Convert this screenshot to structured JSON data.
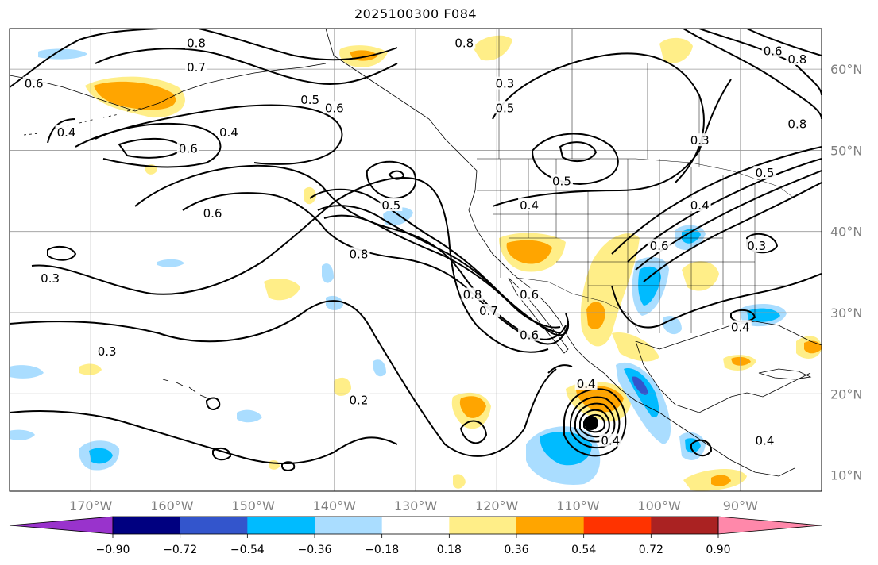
{
  "title": "2025100300 F084",
  "map": {
    "lon_range": [
      -180,
      -80
    ],
    "lat_range": [
      8,
      65
    ],
    "lon_ticks": [
      {
        "lon": -170,
        "label": "170°W"
      },
      {
        "lon": -160,
        "label": "160°W"
      },
      {
        "lon": -150,
        "label": "150°W"
      },
      {
        "lon": -140,
        "label": "140°W"
      },
      {
        "lon": -130,
        "label": "130°W"
      },
      {
        "lon": -120,
        "label": "120°W"
      },
      {
        "lon": -110,
        "label": "110°W"
      },
      {
        "lon": -100,
        "label": "100°W"
      },
      {
        "lon": -90,
        "label": "90°W"
      }
    ],
    "lat_ticks": [
      {
        "lat": 60,
        "label": "60°N"
      },
      {
        "lat": 50,
        "label": "50°N"
      },
      {
        "lat": 40,
        "label": "40°N"
      },
      {
        "lat": 30,
        "label": "30°N"
      },
      {
        "lat": 20,
        "label": "20°N"
      },
      {
        "lat": 10,
        "label": "10°N"
      }
    ],
    "gridlines": true,
    "contour_labels": [
      {
        "lon": -157,
        "lat": 63,
        "text": "0.8"
      },
      {
        "lon": -157,
        "lat": 60,
        "text": "0.7"
      },
      {
        "lon": -177,
        "lat": 58,
        "text": "0.6"
      },
      {
        "lon": -173,
        "lat": 52,
        "text": "0.4"
      },
      {
        "lon": -158,
        "lat": 50,
        "text": "0.6"
      },
      {
        "lon": -153,
        "lat": 52,
        "text": "0.4"
      },
      {
        "lon": -143,
        "lat": 56,
        "text": "0.5"
      },
      {
        "lon": -140,
        "lat": 55,
        "text": "0.6"
      },
      {
        "lon": -155,
        "lat": 42,
        "text": "0.6"
      },
      {
        "lon": -133,
        "lat": 43,
        "text": "0.5"
      },
      {
        "lon": -137,
        "lat": 37,
        "text": "0.8"
      },
      {
        "lon": -123,
        "lat": 32,
        "text": "0.8"
      },
      {
        "lon": -121,
        "lat": 30,
        "text": "0.7"
      },
      {
        "lon": -116,
        "lat": 32,
        "text": "0.6"
      },
      {
        "lon": -116,
        "lat": 27,
        "text": "0.6"
      },
      {
        "lon": -175,
        "lat": 34,
        "text": "0.3"
      },
      {
        "lon": -168,
        "lat": 25,
        "text": "0.3"
      },
      {
        "lon": -137,
        "lat": 19,
        "text": "0.2"
      },
      {
        "lon": -119,
        "lat": 55,
        "text": "0.5"
      },
      {
        "lon": -116,
        "lat": 43,
        "text": "0.4"
      },
      {
        "lon": -112,
        "lat": 46,
        "text": "0.5"
      },
      {
        "lon": -95,
        "lat": 43,
        "text": "0.4"
      },
      {
        "lon": -95,
        "lat": 51,
        "text": "0.3"
      },
      {
        "lon": -100,
        "lat": 38,
        "text": "0.6"
      },
      {
        "lon": -88,
        "lat": 38,
        "text": "0.3"
      },
      {
        "lon": -90,
        "lat": 28,
        "text": "0.4"
      },
      {
        "lon": -109,
        "lat": 21,
        "text": "0.4"
      },
      {
        "lon": -106,
        "lat": 14,
        "text": "0.4"
      },
      {
        "lon": -87,
        "lat": 14,
        "text": "0.4"
      },
      {
        "lon": -119,
        "lat": 58,
        "text": "0.3"
      },
      {
        "lon": -124,
        "lat": 63,
        "text": "0.8"
      },
      {
        "lon": -86,
        "lat": 62,
        "text": "0.6"
      },
      {
        "lon": -83,
        "lat": 61,
        "text": "0.8"
      },
      {
        "lon": -83,
        "lat": 53,
        "text": "0.8"
      },
      {
        "lon": -87,
        "lat": 47,
        "text": "0.5"
      }
    ]
  },
  "colorbar": {
    "colors": [
      "#9933cc",
      "#000080",
      "#3355cc",
      "#00bbff",
      "#aaddff",
      "#ffffff",
      "#ffee88",
      "#ffa500",
      "#ff3300",
      "#aa2222",
      "#ff88aa"
    ],
    "labels": [
      "−0.90",
      "−0.72",
      "−0.54",
      "−0.36",
      "−0.18",
      "0.18",
      "0.36",
      "0.54",
      "0.72",
      "0.90"
    ],
    "extend": "both"
  }
}
